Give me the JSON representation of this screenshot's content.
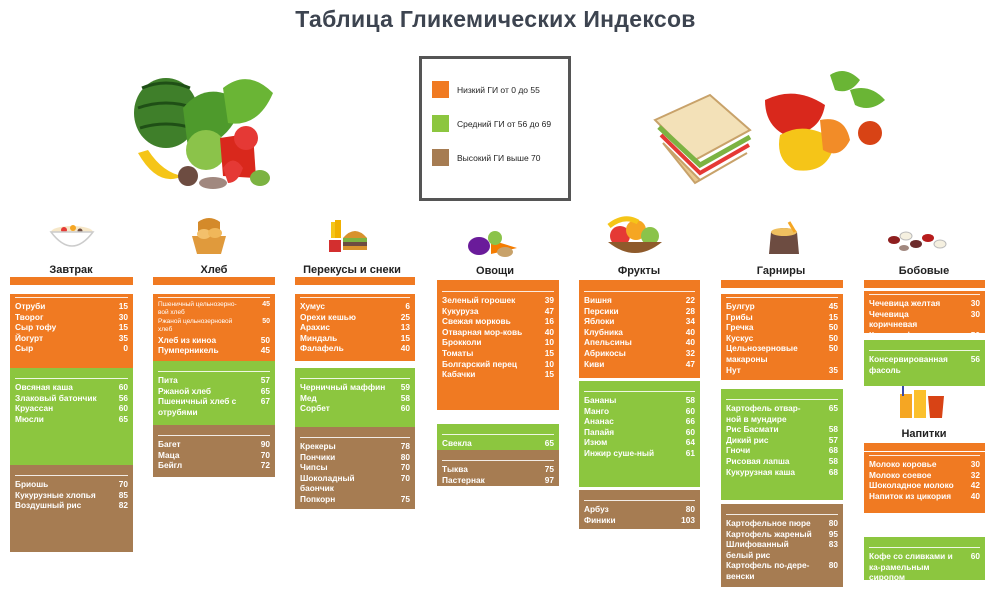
{
  "title": "Таблица Гликемических Индексов",
  "legend": [
    {
      "label": "Низкий ГИ от 0 до 55",
      "color": "#f07a22"
    },
    {
      "label": "Средний ГИ от 56 до 69",
      "color": "#8cc63f"
    },
    {
      "label": "Высокий ГИ выше 70",
      "color": "#a67c52"
    }
  ],
  "columns": {
    "breakfast": {
      "title": "Завтрак",
      "low": [
        [
          "Отруби",
          "15"
        ],
        [
          "Творог",
          "30"
        ],
        [
          "Сыр тофу",
          "15"
        ],
        [
          "Йогурт",
          "35"
        ],
        [
          "Сыр",
          "0"
        ]
      ],
      "mid": [
        [
          "Овсяная каша",
          "60"
        ],
        [
          "Злаковый батончик",
          "56"
        ],
        [
          "Круассан",
          "60"
        ],
        [
          "Мюсли",
          "65"
        ]
      ],
      "high": [
        [
          "Бриошь",
          "70"
        ],
        [
          "Кукурузные хлопья",
          "85"
        ],
        [
          "Воздушный рис",
          "82"
        ]
      ]
    },
    "bread": {
      "title": "Хлеб",
      "low": [
        [
          "Пшеничный цельнозерно-вой хлеб",
          "45"
        ],
        [
          "Ржаной цельнозерновой хлеб",
          "50"
        ],
        [
          "Хлеб из киноа",
          "50"
        ],
        [
          "Пумперникель",
          "45"
        ]
      ],
      "mid": [
        [
          "Пита",
          "57"
        ],
        [
          "Ржаной хлеб",
          "65"
        ],
        [
          "Пшеничный хлеб с отрубями",
          "67"
        ]
      ],
      "high": [
        [
          "Багет",
          "90"
        ],
        [
          "Маца",
          "70"
        ],
        [
          "Бейгл",
          "72"
        ]
      ]
    },
    "snacks": {
      "title": "Перекусы и снеки",
      "low": [
        [
          "Хумус",
          "6"
        ],
        [
          "Орехи кешью",
          "25"
        ],
        [
          "Арахис",
          "13"
        ],
        [
          "Миндаль",
          "15"
        ],
        [
          "Фалафель",
          "40"
        ]
      ],
      "mid": [
        [
          "Черничный маффин",
          "59"
        ],
        [
          "Мед",
          "58"
        ],
        [
          "Сорбет",
          "60"
        ]
      ],
      "high": [
        [
          "Крекеры",
          "78"
        ],
        [
          "Пончики",
          "80"
        ],
        [
          "Чипсы",
          "70"
        ],
        [
          "Шоколадный баончик",
          "70"
        ],
        [
          "Попкорн",
          "75"
        ]
      ]
    },
    "vegetables": {
      "title": "Овощи",
      "low": [
        [
          "Зеленый горошек",
          "39"
        ],
        [
          "Кукуруза",
          "47"
        ],
        [
          "Свежая морковь",
          "16"
        ],
        [
          "Отварная мор-ковь",
          "40"
        ],
        [
          "Брокколи",
          "10"
        ],
        [
          "Томаты",
          "15"
        ],
        [
          "Болгарский перец",
          "10"
        ],
        [
          "Кабачки",
          "15"
        ]
      ],
      "mid": [
        [
          "Свекла",
          "65"
        ]
      ],
      "high": [
        [
          "Тыква",
          "75"
        ],
        [
          "Пастернак",
          "97"
        ]
      ]
    },
    "fruits": {
      "title": "Фрукты",
      "low": [
        [
          "Вишня",
          "22"
        ],
        [
          "Персики",
          "28"
        ],
        [
          "Яблоки",
          "34"
        ],
        [
          "Клубника",
          "40"
        ],
        [
          "Апельсины",
          "40"
        ],
        [
          "Абрикосы",
          "32"
        ],
        [
          "Киви",
          "47"
        ]
      ],
      "mid": [
        [
          "Бананы",
          "58"
        ],
        [
          "Манго",
          "60"
        ],
        [
          "Ананас",
          "66"
        ],
        [
          "Папайя",
          "60"
        ],
        [
          "Изюм",
          "64"
        ],
        [
          "Инжир суше-ный",
          "61"
        ]
      ],
      "high": [
        [
          "Арбуз",
          "80"
        ],
        [
          "Финики",
          "103"
        ]
      ]
    },
    "sides": {
      "title": "Гарниры",
      "low": [
        [
          "Булгур",
          "45"
        ],
        [
          "Грибы",
          "15"
        ],
        [
          "Гречка",
          "50"
        ],
        [
          "Кускус",
          "50"
        ],
        [
          "Цельнозерновые макароны",
          "50"
        ],
        [
          "Нут",
          "35"
        ]
      ],
      "mid": [
        [
          "Картофель отвар-ной в мундире",
          "65"
        ],
        [
          "Рис Басмати",
          "58"
        ],
        [
          "Дикий рис",
          "57"
        ],
        [
          "Гночи",
          "68"
        ],
        [
          "Рисовая лапша",
          "58"
        ],
        [
          "Кукурузная каша",
          "68"
        ]
      ],
      "high": [
        [
          "Картофельное пюре",
          "80"
        ],
        [
          "Картофель жареный",
          "95"
        ],
        [
          "Шлифованный белый рис",
          "83"
        ],
        [
          "Картофель по-дере-венски",
          "80"
        ]
      ]
    },
    "legumes": {
      "title": "Бобовые",
      "low": [
        [
          "Чечевица желтая",
          "30"
        ],
        [
          "Чечевица коричневая",
          "30"
        ],
        [
          "Красная фасоль",
          "50"
        ]
      ],
      "mid": [
        [
          "Консервированная фасоль",
          "56"
        ]
      ]
    },
    "drinks": {
      "title": "Напитки",
      "low": [
        [
          "Молоко коровье",
          "30"
        ],
        [
          "Молоко соевое",
          "32"
        ],
        [
          "Шоколадное молоко",
          "42"
        ],
        [
          "Напиток из цикория",
          "40"
        ]
      ],
      "mid": [
        [
          "Кофе со сливками и ка-рамельным сиропом",
          "60"
        ]
      ]
    }
  }
}
